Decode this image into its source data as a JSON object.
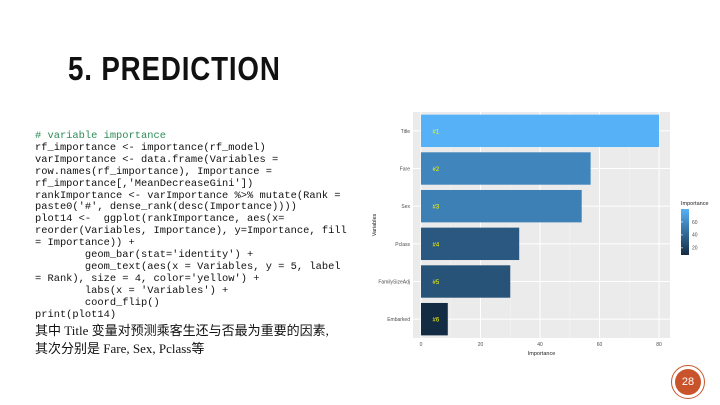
{
  "slide": {
    "title": "5. PREDICTION",
    "code_comment": "# variable importance",
    "code_body": "rf_importance <- importance(rf_model)\nvarImportance <- data.frame(Variables =\nrow.names(rf_importance), Importance =\nrf_importance[,'MeanDecreaseGini'])\nrankImportance <- varImportance %>% mutate(Rank =\npaste0('#', dense_rank(desc(Importance))))\nplot14 <-  ggplot(rankImportance, aes(x=\nreorder(Variables, Importance), y=Importance, fill\n= Importance)) +\n        geom_bar(stat='identity') +\n        geom_text(aes(x = Variables, y = 5, label\n= Rank), size = 4, color='yellow') +\n        labs(x = 'Variables') +\n        coord_flip()\nprint(plot14)",
    "caption_line1": "其中 Title 变量对预测乘客生还与否最为重要的因素,",
    "caption_line2": "其次分别是 Fare,  Sex,  Pclass等",
    "page_number": "28"
  },
  "colors": {
    "panel_bg": "#ebebeb",
    "grid": "#ffffff",
    "rank_label": "#ffff00",
    "comment": "#2e8b57",
    "badge": "#c9542b"
  },
  "chart_data": {
    "type": "bar",
    "orientation": "horizontal",
    "categories": [
      "Title",
      "Fare",
      "Sex",
      "Pclass",
      "FamilySizeAdj",
      "Embarked"
    ],
    "values": [
      80,
      57,
      54,
      33,
      30,
      9
    ],
    "labels": [
      "#1",
      "#2",
      "#3",
      "#4",
      "#5",
      "#6"
    ],
    "xlabel": "Importance",
    "ylabel": "Variables",
    "xlim": [
      0,
      83
    ],
    "xticks": [
      0,
      20,
      40,
      60,
      80
    ],
    "legend": {
      "title": "Importance",
      "ticks": [
        20,
        40,
        60
      ],
      "low_color": "#132b43",
      "high_color": "#56b1f7",
      "range": [
        9,
        80
      ],
      "position": "right"
    },
    "grid": true
  }
}
